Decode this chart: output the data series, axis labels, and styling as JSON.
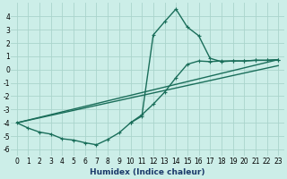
{
  "xlabel": "Humidex (Indice chaleur)",
  "bg_color": "#cceee8",
  "grid_color": "#aad4cc",
  "line_color": "#1a6e5a",
  "xlim": [
    -0.5,
    23.5
  ],
  "ylim": [
    -6.5,
    5.0
  ],
  "yticks": [
    -6,
    -5,
    -4,
    -3,
    -2,
    -1,
    0,
    1,
    2,
    3,
    4
  ],
  "xticks": [
    0,
    1,
    2,
    3,
    4,
    5,
    6,
    7,
    8,
    9,
    10,
    11,
    12,
    13,
    14,
    15,
    16,
    17,
    18,
    19,
    20,
    21,
    22,
    23
  ],
  "xtick_labels": [
    "0",
    "1",
    "2",
    "3",
    "4",
    "5",
    "6",
    "7",
    "8",
    "9",
    "10",
    "11",
    "12",
    "13",
    "14",
    "15",
    "16",
    "17",
    "18",
    "19",
    "20",
    "21",
    "22",
    "23"
  ],
  "series_wavy_x": [
    0,
    1,
    2,
    3,
    4,
    5,
    6,
    7,
    8,
    9,
    10,
    11,
    12,
    13,
    14,
    15,
    16,
    17,
    18,
    19,
    20,
    21,
    22,
    23
  ],
  "series_wavy_y": [
    -4.0,
    -4.4,
    -4.7,
    -4.85,
    -5.2,
    -5.3,
    -5.5,
    -5.65,
    -5.25,
    -4.75,
    -4.0,
    -3.4,
    -2.6,
    -1.7,
    -0.6,
    0.4,
    0.65,
    0.6,
    0.65,
    0.65,
    0.65,
    0.7,
    0.7,
    0.75
  ],
  "series_peak_x": [
    10,
    11,
    12,
    13,
    14,
    15,
    16,
    17,
    18,
    19,
    20,
    21,
    22,
    23
  ],
  "series_peak_y": [
    -4.0,
    -3.5,
    2.6,
    3.6,
    4.55,
    3.2,
    2.55,
    0.85,
    0.6,
    0.65,
    0.65,
    0.7,
    0.7,
    0.75
  ],
  "series_line1_x": [
    0,
    23
  ],
  "series_line1_y": [
    -4.0,
    0.75
  ],
  "series_line2_x": [
    0,
    23
  ],
  "series_line2_y": [
    -4.0,
    0.3
  ],
  "tick_fontsize": 5.5,
  "xlabel_fontsize": 6.5
}
